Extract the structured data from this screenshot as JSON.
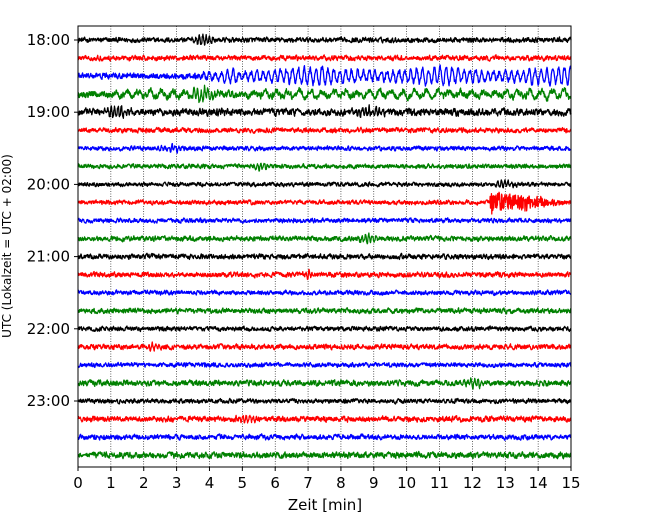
{
  "chart_data": {
    "type": "line",
    "title": "",
    "xlabel": "Zeit  [min]",
    "ylabel": "UTC (Lokalzeit = UTC + 02:00)",
    "xlim": [
      0,
      15
    ],
    "x_ticks": [
      "0",
      "1",
      "2",
      "3",
      "4",
      "5",
      "6",
      "7",
      "8",
      "9",
      "10",
      "11",
      "12",
      "13",
      "14",
      "15"
    ],
    "y_ticks": [
      "18:00",
      "19:00",
      "20:00",
      "21:00",
      "22:00",
      "23:00"
    ],
    "x_grid": true,
    "trace_interval_minutes": 15,
    "colors": [
      "#000000",
      "#ff0000",
      "#0000ff",
      "#008000"
    ],
    "traces": [
      {
        "start": "18:00",
        "color": "#000000",
        "amplitude": 0.25,
        "features": [
          {
            "x": 3.8,
            "amp": 0.6,
            "width": 0.3
          }
        ]
      },
      {
        "start": "18:15",
        "color": "#ff0000",
        "amplitude": 0.25,
        "features": []
      },
      {
        "start": "18:30",
        "color": "#0000ff",
        "amplitude": 0.3,
        "oscillation": {
          "start": 3.5,
          "end": 15,
          "amp": 1.0,
          "period_min": 0.18
        }
      },
      {
        "start": "18:45",
        "color": "#008000",
        "amplitude": 0.35,
        "oscillation": {
          "start": 0,
          "end": 15,
          "amp": 0.45,
          "period_min": 0.35
        },
        "features": [
          {
            "x": 3.8,
            "amp": 0.9,
            "width": 0.3
          }
        ]
      },
      {
        "start": "19:00",
        "color": "#000000",
        "amplitude": 0.35,
        "features": [
          {
            "x": 1.2,
            "amp": 0.6,
            "width": 0.4
          },
          {
            "x": 8.8,
            "amp": 0.5,
            "width": 0.4
          }
        ]
      },
      {
        "start": "19:15",
        "color": "#ff0000",
        "amplitude": 0.25,
        "features": []
      },
      {
        "start": "19:30",
        "color": "#0000ff",
        "amplitude": 0.22,
        "features": [
          {
            "x": 2.9,
            "amp": 0.4,
            "width": 0.3
          }
        ]
      },
      {
        "start": "19:45",
        "color": "#008000",
        "amplitude": 0.22,
        "features": [
          {
            "x": 5.6,
            "amp": 0.4,
            "width": 0.3
          }
        ]
      },
      {
        "start": "20:00",
        "color": "#000000",
        "amplitude": 0.2,
        "features": [
          {
            "x": 13.0,
            "amp": 0.4,
            "width": 0.3
          }
        ]
      },
      {
        "start": "20:15",
        "color": "#ff0000",
        "amplitude": 0.22,
        "quake": {
          "start": 12.5,
          "end": 15,
          "amp": 1.6,
          "peak_at": 12.6
        }
      },
      {
        "start": "20:30",
        "color": "#0000ff",
        "amplitude": 0.22,
        "features": []
      },
      {
        "start": "20:45",
        "color": "#008000",
        "amplitude": 0.25,
        "features": [
          {
            "x": 8.8,
            "amp": 0.4,
            "width": 0.3
          }
        ]
      },
      {
        "start": "21:00",
        "color": "#000000",
        "amplitude": 0.25,
        "features": []
      },
      {
        "start": "21:15",
        "color": "#ff0000",
        "amplitude": 0.25,
        "features": [
          {
            "x": 7.0,
            "amp": 0.4,
            "width": 0.2
          }
        ]
      },
      {
        "start": "21:30",
        "color": "#0000ff",
        "amplitude": 0.22,
        "features": []
      },
      {
        "start": "21:45",
        "color": "#008000",
        "amplitude": 0.25,
        "features": []
      },
      {
        "start": "22:00",
        "color": "#000000",
        "amplitude": 0.22,
        "features": []
      },
      {
        "start": "22:15",
        "color": "#ff0000",
        "amplitude": 0.25,
        "features": [
          {
            "x": 2.3,
            "amp": 0.4,
            "width": 0.2
          }
        ]
      },
      {
        "start": "22:30",
        "color": "#0000ff",
        "amplitude": 0.22,
        "features": []
      },
      {
        "start": "22:45",
        "color": "#008000",
        "amplitude": 0.28,
        "features": [
          {
            "x": 12.1,
            "amp": 0.4,
            "width": 0.3
          }
        ]
      },
      {
        "start": "23:00",
        "color": "#000000",
        "amplitude": 0.22,
        "features": []
      },
      {
        "start": "23:15",
        "color": "#ff0000",
        "amplitude": 0.28,
        "features": [
          {
            "x": 5.1,
            "amp": 0.4,
            "width": 0.3
          }
        ]
      },
      {
        "start": "23:30",
        "color": "#0000ff",
        "amplitude": 0.25,
        "features": []
      },
      {
        "start": "23:45",
        "color": "#008000",
        "amplitude": 0.3,
        "features": []
      }
    ]
  }
}
